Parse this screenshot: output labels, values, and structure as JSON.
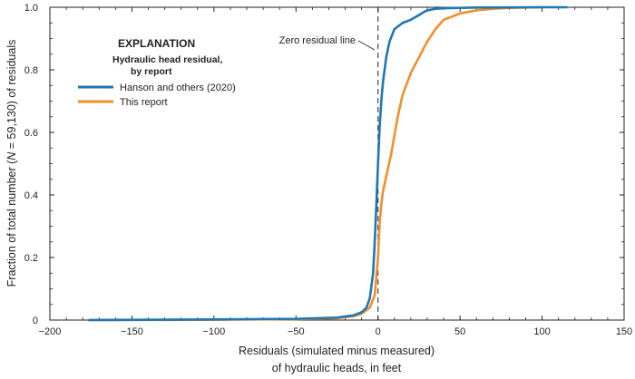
{
  "chart_data": {
    "type": "line",
    "title": "",
    "xlabel_line1": "Residuals (simulated minus measured)",
    "xlabel_line2": "of hydraulic heads, in feet",
    "ylabel": "Fraction of total number (N = 59,130) of residuals",
    "ylabel_parts": [
      "Fraction of total number (",
      "N",
      " = 59,130) of residuals"
    ],
    "xlim": [
      -200,
      150
    ],
    "ylim": [
      0,
      1.0
    ],
    "x_ticks": [
      -200,
      -150,
      -100,
      -50,
      0,
      50,
      100,
      150
    ],
    "x_tick_labels": [
      "−200",
      "−150",
      "−100",
      "−50",
      "0",
      "50",
      "100",
      "150"
    ],
    "y_ticks": [
      0,
      0.2,
      0.4,
      0.6,
      0.8,
      1.0
    ],
    "y_tick_labels": [
      "0",
      "0.2",
      "0.4",
      "0.6",
      "0.8",
      "1.0"
    ],
    "legend": {
      "title": "EXPLANATION",
      "subtitle_line1": "Hydraulic head residual,",
      "subtitle_line2": "by report"
    },
    "reference_line": {
      "x": 0,
      "label": "Zero residual line",
      "style": "dashed"
    },
    "series": [
      {
        "name": "Hanson and others (2020)",
        "color": "#1f77b4",
        "x": [
          -176,
          -100,
          -50,
          -25,
          -15,
          -10,
          -7,
          -5,
          -3,
          -2,
          -1,
          0,
          1,
          2,
          3,
          5,
          7,
          10,
          15,
          20,
          25,
          28,
          30,
          35,
          40,
          50,
          60,
          80,
          100,
          115
        ],
        "y": [
          0.0,
          0.002,
          0.004,
          0.008,
          0.015,
          0.025,
          0.04,
          0.07,
          0.15,
          0.25,
          0.37,
          0.5,
          0.62,
          0.7,
          0.76,
          0.84,
          0.89,
          0.93,
          0.95,
          0.96,
          0.975,
          0.985,
          0.99,
          0.995,
          0.997,
          0.998,
          0.999,
          0.9995,
          1.0,
          1.0
        ]
      },
      {
        "name": "This report",
        "color": "#f28e2b",
        "x": [
          -176,
          -100,
          -50,
          -25,
          -15,
          -10,
          -5,
          -2,
          0,
          1,
          2,
          3,
          5,
          8,
          10,
          12,
          15,
          20,
          25,
          30,
          35,
          40,
          50,
          60,
          70,
          80,
          100
        ],
        "y": [
          0.0,
          0.001,
          0.003,
          0.006,
          0.012,
          0.02,
          0.04,
          0.08,
          0.2,
          0.31,
          0.37,
          0.41,
          0.46,
          0.53,
          0.59,
          0.65,
          0.72,
          0.79,
          0.84,
          0.89,
          0.93,
          0.96,
          0.98,
          0.99,
          0.995,
          0.998,
          1.0
        ]
      }
    ]
  }
}
